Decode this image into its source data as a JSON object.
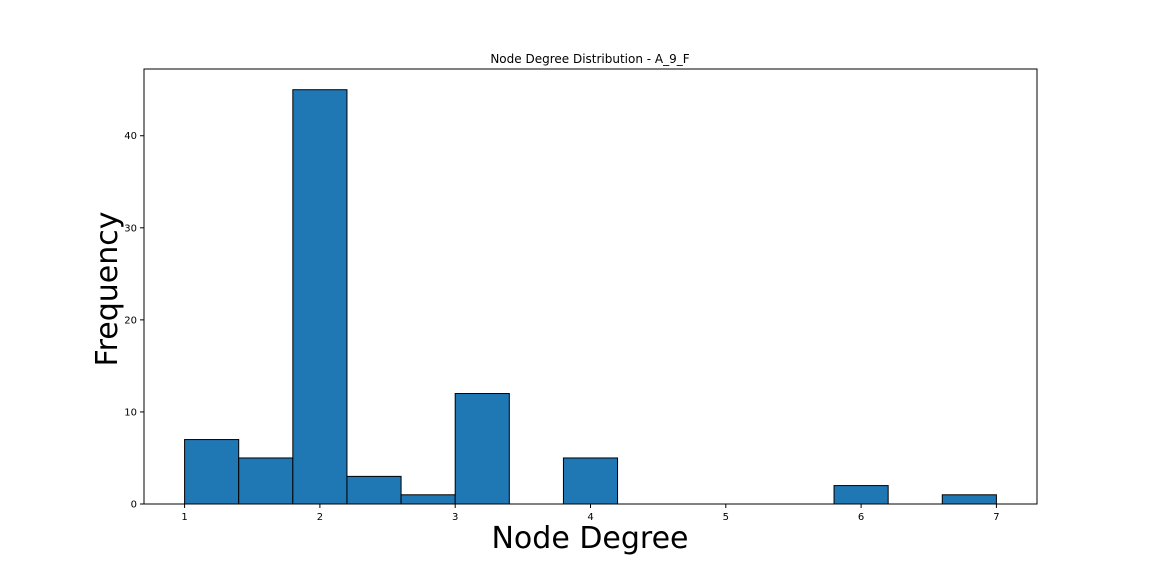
{
  "chart_data": {
    "type": "bar",
    "title": "Node Degree Distribution - A_9_F",
    "xlabel": "Node Degree",
    "ylabel": "Frequency",
    "xlim": [
      0.7,
      7.3
    ],
    "ylim": [
      0,
      47.25
    ],
    "x_ticks": [
      1,
      2,
      3,
      4,
      5,
      6,
      7
    ],
    "y_ticks": [
      0,
      10,
      20,
      30,
      40
    ],
    "grid": false,
    "legend": "none",
    "bar_color": "#1f77b4",
    "edge_color": "#000000",
    "bins": [
      {
        "x0": 1.0,
        "x1": 1.4,
        "value": 7
      },
      {
        "x0": 1.4,
        "x1": 1.8,
        "value": 5
      },
      {
        "x0": 1.8,
        "x1": 2.2,
        "value": 45
      },
      {
        "x0": 2.2,
        "x1": 2.6,
        "value": 3
      },
      {
        "x0": 2.6,
        "x1": 3.0,
        "value": 1
      },
      {
        "x0": 3.0,
        "x1": 3.4,
        "value": 12
      },
      {
        "x0": 3.4,
        "x1": 3.8,
        "value": 0
      },
      {
        "x0": 3.8,
        "x1": 4.2,
        "value": 5
      },
      {
        "x0": 4.2,
        "x1": 4.6,
        "value": 0
      },
      {
        "x0": 4.6,
        "x1": 5.0,
        "value": 0
      },
      {
        "x0": 5.0,
        "x1": 5.4,
        "value": 0
      },
      {
        "x0": 5.4,
        "x1": 5.8,
        "value": 0
      },
      {
        "x0": 5.8,
        "x1": 6.2,
        "value": 2
      },
      {
        "x0": 6.2,
        "x1": 6.6,
        "value": 0
      },
      {
        "x0": 6.6,
        "x1": 7.0,
        "value": 1
      }
    ]
  }
}
